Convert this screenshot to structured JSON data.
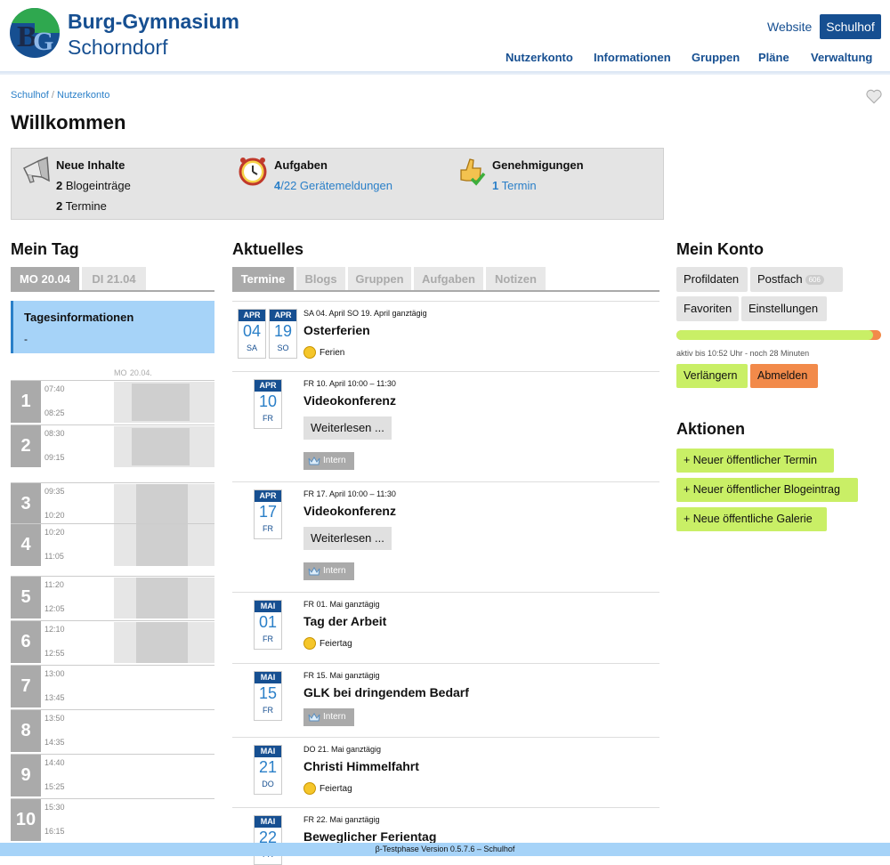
{
  "header": {
    "school_name_line1": "Burg-Gymnasium",
    "school_name_line2": "Schorndorf",
    "website_label": "Website",
    "schulhof_label": "Schulhof",
    "nav": [
      "Nutzerkonto",
      "Informationen",
      "Gruppen",
      "Pläne",
      "Verwaltung"
    ],
    "accent_color": "#164f91"
  },
  "breadcrumb": {
    "items": [
      "Schulhof",
      "Nutzerkonto"
    ],
    "separator": "/"
  },
  "page_title": "Willkommen",
  "overview": {
    "new_content": {
      "title": "Neue Inhalte",
      "blog_count": "2",
      "blog_label": "Blogeinträge",
      "event_count": "2",
      "event_label": "Termine",
      "icon": "megaphone-icon"
    },
    "tasks": {
      "title": "Aufgaben",
      "count": "4",
      "rest": "/22 Gerätemeldungen",
      "icon": "alarm-clock-icon"
    },
    "approvals": {
      "title": "Genehmigungen",
      "count": "1",
      "label": "Termin",
      "icon": "thumbs-up-icon"
    }
  },
  "my_day": {
    "title": "Mein Tag",
    "tabs": [
      "MO 20.04",
      "DI 21.04"
    ],
    "info_title": "Tagesinformationen",
    "info_value": "-",
    "day_label": "MO",
    "day_date": "20.04.",
    "periods": [
      {
        "num": "1",
        "start": "07:40",
        "end": "08:25",
        "occupied": 0.85
      },
      {
        "num": "2",
        "start": "08:30",
        "end": "09:15",
        "occupied": 0.85
      },
      {
        "num": "3",
        "start": "09:35",
        "end": "10:20",
        "occupied": 1
      },
      {
        "num": "4",
        "start": "10:20",
        "end": "11:05",
        "occupied": 1
      },
      {
        "num": "5",
        "start": "11:20",
        "end": "12:05",
        "occupied": 1
      },
      {
        "num": "6",
        "start": "12:10",
        "end": "12:55",
        "occupied": 1
      },
      {
        "num": "7",
        "start": "13:00",
        "end": "13:45",
        "occupied": 0
      },
      {
        "num": "8",
        "start": "13:50",
        "end": "14:35",
        "occupied": 0
      },
      {
        "num": "9",
        "start": "14:40",
        "end": "15:25",
        "occupied": 0
      },
      {
        "num": "10",
        "start": "15:30",
        "end": "16:15",
        "occupied": 0
      }
    ]
  },
  "news": {
    "title": "Aktuelles",
    "tabs": [
      "Termine",
      "Blogs",
      "Gruppen",
      "Aufgaben",
      "Notizen"
    ],
    "events": [
      {
        "cal": [
          {
            "month": "APR",
            "day": "04",
            "weekday": "SA"
          },
          {
            "month": "APR",
            "day": "19",
            "weekday": "SO"
          }
        ],
        "date": "SA 04. April SO 19. April ganztägig",
        "title": "Osterferien",
        "tag": "Ferien",
        "tag_icon": "sunglasses-smiley-icon"
      },
      {
        "cal": [
          {
            "month": "APR",
            "day": "10",
            "weekday": "FR"
          }
        ],
        "date": "FR 10. April 10:00 – 11:30",
        "title": "Videokonferenz",
        "button": "Weiterlesen ...",
        "badge": "Intern",
        "badge_icon": "crown-icon"
      },
      {
        "cal": [
          {
            "month": "APR",
            "day": "17",
            "weekday": "FR"
          }
        ],
        "date": "FR 17. April 10:00 – 11:30",
        "title": "Videokonferenz",
        "button": "Weiterlesen ...",
        "badge": "Intern",
        "badge_icon": "crown-icon"
      },
      {
        "cal": [
          {
            "month": "MAI",
            "day": "01",
            "weekday": "FR"
          }
        ],
        "date": "FR 01. Mai ganztägig",
        "title": "Tag der Arbeit",
        "tag": "Feiertag",
        "tag_icon": "smiley-icon"
      },
      {
        "cal": [
          {
            "month": "MAI",
            "day": "15",
            "weekday": "FR"
          }
        ],
        "date": "FR 15. Mai ganztägig",
        "title": "GLK bei dringendem Bedarf",
        "badge": "Intern",
        "badge_icon": "crown-icon"
      },
      {
        "cal": [
          {
            "month": "MAI",
            "day": "21",
            "weekday": "DO"
          }
        ],
        "date": "DO 21. Mai ganztägig",
        "title": "Christi Himmelfahrt",
        "tag": "Feiertag",
        "tag_icon": "smiley-icon"
      },
      {
        "cal": [
          {
            "month": "MAI",
            "day": "22",
            "weekday": "FR"
          }
        ],
        "date": "FR 22. Mai ganztägig",
        "title": "Beweglicher Ferientag"
      }
    ]
  },
  "account": {
    "title": "Mein Konto",
    "buttons": {
      "profile": "Profildaten",
      "mailbox": "Postfach",
      "mailbox_count": "606",
      "favorites": "Favoriten",
      "settings": "Einstellungen"
    },
    "session_remaining_fraction": 0.96,
    "active_text": "aktiv bis 10:52 Uhr - noch 28 Minuten",
    "extend": "Verlängern",
    "logout": "Abmelden"
  },
  "actions": {
    "title": "Aktionen",
    "items": [
      "+ Neuer öffentlicher Termin",
      "+ Neuer öffentlicher Blogeintrag",
      "+ Neue öffentliche Galerie"
    ]
  },
  "footer": "β-Testphase Version 0.5.7.6 – Schulhof"
}
